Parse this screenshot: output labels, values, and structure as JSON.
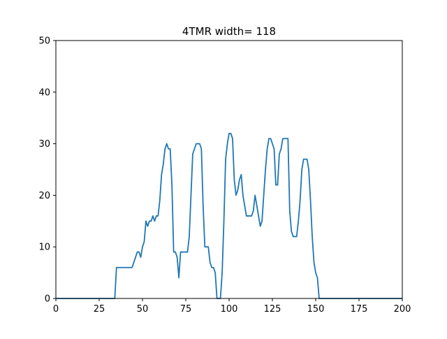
{
  "chart_data": {
    "type": "line",
    "title": "4TMR width= 118",
    "xlabel": "",
    "ylabel": "",
    "xlim": [
      0,
      200
    ],
    "ylim": [
      0,
      50
    ],
    "xticks": [
      0,
      25,
      50,
      75,
      100,
      125,
      150,
      175,
      200
    ],
    "yticks": [
      0,
      10,
      20,
      30,
      40,
      50
    ],
    "grid": false,
    "colors": {
      "line": "#1f77b4",
      "axes": "#000000",
      "background": "#ffffff"
    },
    "series": [
      {
        "x": [
          0,
          34,
          35,
          36,
          40,
          44,
          45,
          46,
          47,
          48,
          49,
          50,
          51,
          52,
          53,
          54,
          55,
          56,
          57,
          58,
          59,
          60,
          61,
          62,
          63,
          64,
          65,
          66,
          67,
          68,
          69,
          70,
          71,
          72,
          73,
          74,
          75,
          76,
          77,
          78,
          79,
          80,
          81,
          82,
          83,
          84,
          85,
          86,
          87,
          88,
          89,
          90,
          91,
          92,
          93,
          94,
          95,
          96,
          97,
          98,
          99,
          100,
          101,
          102,
          103,
          104,
          105,
          106,
          107,
          108,
          109,
          110,
          111,
          112,
          113,
          114,
          115,
          116,
          117,
          118,
          119,
          120,
          121,
          122,
          123,
          124,
          125,
          126,
          127,
          128,
          129,
          130,
          131,
          132,
          133,
          134,
          135,
          136,
          137,
          138,
          139,
          140,
          141,
          142,
          143,
          144,
          145,
          146,
          147,
          148,
          149,
          150,
          151,
          152,
          153,
          200
        ],
        "y": [
          0,
          0,
          6,
          6,
          6,
          6,
          7,
          8,
          9,
          9,
          8,
          10,
          11,
          15,
          14,
          15,
          15,
          16,
          15,
          16,
          16,
          19,
          24,
          26,
          29,
          30,
          29,
          29,
          22,
          9,
          9,
          8,
          4,
          9,
          9,
          9,
          9,
          9,
          12,
          20,
          28,
          29,
          30,
          30,
          30,
          29,
          18,
          10,
          10,
          10,
          7,
          6,
          6,
          5,
          0,
          0,
          0,
          5,
          15,
          27,
          30,
          32,
          32,
          31,
          23,
          20,
          21,
          23,
          24,
          20,
          18,
          16,
          16,
          16,
          16,
          17,
          20,
          18,
          16,
          14,
          15,
          20,
          25,
          29,
          31,
          31,
          30,
          29,
          22,
          22,
          28,
          29,
          31,
          31,
          31,
          31,
          17,
          13,
          12,
          12,
          12,
          15,
          19,
          25,
          27,
          27,
          27,
          25,
          19,
          12,
          7,
          5,
          4,
          0,
          0,
          0
        ]
      }
    ]
  }
}
